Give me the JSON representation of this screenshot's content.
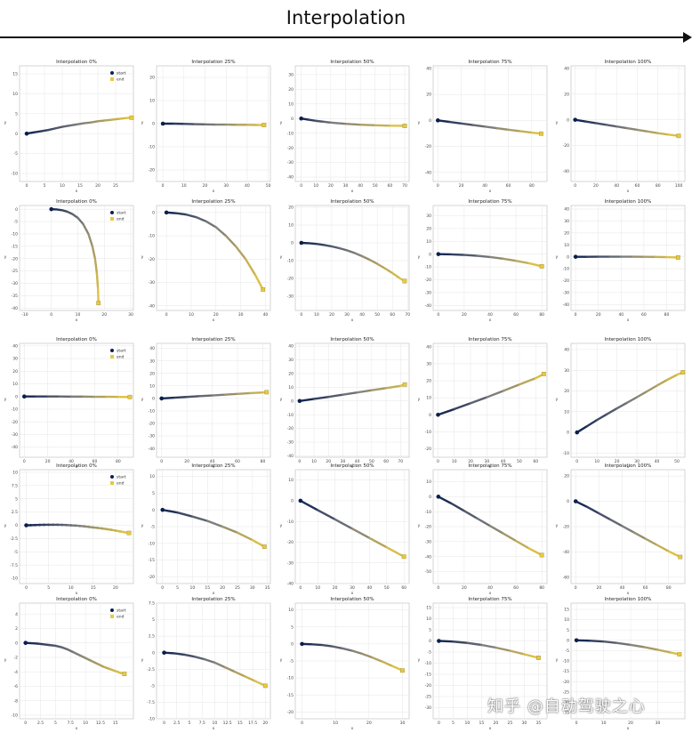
{
  "header": {
    "title": "Interpolation"
  },
  "watermark": "知乎 @自动驾驶之心",
  "colors": {
    "start": "#0b1f4d",
    "end": "#e8c93e",
    "mid": "#7d7d7d",
    "grid": "#e6e6e6",
    "frame": "#bbbbbb"
  },
  "chart_data": [
    {
      "type": "line",
      "title": "Interpolation 0%",
      "xlabel": "x",
      "ylabel": "y",
      "xlim": [
        -2,
        30
      ],
      "ylim": [
        -12,
        17
      ],
      "xticks": [
        0,
        5,
        10,
        15,
        20,
        25
      ],
      "yticks": [
        15,
        10,
        5,
        0,
        -5,
        -10
      ],
      "legend": [
        "start",
        "end"
      ],
      "x": [
        0,
        2,
        4,
        6,
        8,
        10,
        12,
        14,
        16,
        18,
        20,
        22,
        24,
        26,
        28,
        29.5
      ],
      "y": [
        0,
        0.3,
        0.6,
        0.9,
        1.3,
        1.7,
        2.0,
        2.3,
        2.6,
        2.8,
        3.1,
        3.3,
        3.5,
        3.7,
        3.9,
        4.0
      ]
    },
    {
      "type": "line",
      "title": "Interpolation 25%",
      "xlabel": "x",
      "ylabel": "y",
      "xlim": [
        -3,
        51
      ],
      "ylim": [
        -25,
        25
      ],
      "xticks": [
        0,
        10,
        20,
        30,
        40,
        50
      ],
      "yticks": [
        20,
        10,
        0,
        -10,
        -20
      ],
      "legend": [],
      "x": [
        0,
        5,
        10,
        15,
        20,
        25,
        30,
        35,
        40,
        45,
        48
      ],
      "y": [
        0,
        0,
        -0.1,
        -0.2,
        -0.3,
        -0.4,
        -0.4,
        -0.5,
        -0.5,
        -0.6,
        -0.6
      ]
    },
    {
      "type": "line",
      "title": "Interpolation 50%",
      "xlabel": "x",
      "ylabel": "y",
      "xlim": [
        -4,
        73
      ],
      "ylim": [
        -43,
        36
      ],
      "xticks": [
        0,
        10,
        20,
        30,
        40,
        50,
        60,
        70
      ],
      "yticks": [
        30,
        20,
        10,
        0,
        -10,
        -20,
        -30,
        -40
      ],
      "legend": [],
      "x": [
        0,
        5,
        10,
        15,
        20,
        30,
        40,
        50,
        60,
        70
      ],
      "y": [
        0,
        -0.8,
        -1.6,
        -2.2,
        -2.8,
        -3.6,
        -4.2,
        -4.6,
        -4.9,
        -5.0
      ]
    },
    {
      "type": "line",
      "title": "Interpolation 75%",
      "xlabel": "x",
      "ylabel": "y",
      "xlim": [
        -4,
        93
      ],
      "ylim": [
        -47,
        42
      ],
      "xticks": [
        0,
        20,
        40,
        60,
        80
      ],
      "yticks": [
        40,
        20,
        0,
        -20,
        -40
      ],
      "legend": [],
      "x": [
        0,
        10,
        20,
        30,
        40,
        50,
        60,
        70,
        80,
        88
      ],
      "y": [
        0,
        -1.2,
        -2.4,
        -3.6,
        -4.8,
        -6.0,
        -7.2,
        -8.3,
        -9.4,
        -10.2
      ]
    },
    {
      "type": "line",
      "title": "Interpolation 100%",
      "xlabel": "x",
      "ylabel": "y",
      "xlim": [
        -4,
        106
      ],
      "ylim": [
        -48,
        42
      ],
      "xticks": [
        0,
        20,
        40,
        60,
        80,
        100
      ],
      "yticks": [
        40,
        20,
        0,
        -20,
        -40
      ],
      "legend": [],
      "x": [
        0,
        10,
        20,
        30,
        40,
        50,
        60,
        70,
        80,
        90,
        100
      ],
      "y": [
        0,
        -1.3,
        -2.6,
        -3.9,
        -5.2,
        -6.5,
        -7.8,
        -9.1,
        -10.4,
        -11.5,
        -12.5
      ]
    },
    {
      "type": "line",
      "title": "Interpolation 0%",
      "xlabel": "x",
      "ylabel": "y",
      "xlim": [
        -12,
        31
      ],
      "ylim": [
        -41,
        1.5
      ],
      "xticks": [
        -10,
        0,
        10,
        20,
        30
      ],
      "yticks": [
        0,
        -5,
        -10,
        -15,
        -20,
        -25,
        -30,
        -35,
        -40
      ],
      "legend": [
        "start",
        "end"
      ],
      "x": [
        0,
        2,
        4,
        6,
        8,
        10,
        12,
        14,
        15.5,
        16.5,
        17.2,
        17.6,
        17.8
      ],
      "y": [
        0,
        -0.1,
        -0.4,
        -1,
        -2,
        -3.5,
        -6,
        -10,
        -15,
        -20,
        -26,
        -32,
        -38
      ]
    },
    {
      "type": "line",
      "title": "Interpolation 25%",
      "xlabel": "x",
      "ylabel": "y",
      "xlim": [
        -4,
        42
      ],
      "ylim": [
        -42,
        3
      ],
      "xticks": [
        0,
        10,
        20,
        30,
        40
      ],
      "yticks": [
        0,
        -10,
        -20,
        -30,
        -40
      ],
      "legend": [],
      "x": [
        0,
        4,
        8,
        12,
        16,
        20,
        24,
        28,
        32,
        36,
        39
      ],
      "y": [
        0,
        -0.3,
        -0.9,
        -2,
        -3.8,
        -6.3,
        -10,
        -14.5,
        -20,
        -27,
        -33
      ]
    },
    {
      "type": "line",
      "title": "Interpolation 50%",
      "xlabel": "x",
      "ylabel": "y",
      "xlim": [
        -4,
        71
      ],
      "ylim": [
        -38,
        21
      ],
      "xticks": [
        0,
        10,
        20,
        30,
        40,
        50,
        60,
        70
      ],
      "yticks": [
        20,
        10,
        0,
        -10,
        -20,
        -30
      ],
      "legend": [],
      "x": [
        0,
        5,
        10,
        15,
        20,
        25,
        30,
        35,
        40,
        45,
        50,
        55,
        60,
        65,
        68
      ],
      "y": [
        0,
        -0.2,
        -0.6,
        -1.2,
        -2,
        -3,
        -4.2,
        -5.7,
        -7.5,
        -9.5,
        -11.8,
        -14.3,
        -17,
        -20,
        -21.5
      ]
    },
    {
      "type": "line",
      "title": "Interpolation 75%",
      "xlabel": "x",
      "ylabel": "y",
      "xlim": [
        -4,
        84
      ],
      "ylim": [
        -44,
        38
      ],
      "xticks": [
        0,
        20,
        40,
        60,
        80
      ],
      "yticks": [
        30,
        20,
        10,
        0,
        -10,
        -20,
        -30,
        -40
      ],
      "legend": [],
      "x": [
        0,
        10,
        20,
        30,
        40,
        50,
        60,
        70,
        80
      ],
      "y": [
        0,
        -0.2,
        -0.6,
        -1.3,
        -2.3,
        -3.6,
        -5.2,
        -7.1,
        -9.5
      ]
    },
    {
      "type": "line",
      "title": "Interpolation 100%",
      "xlabel": "x",
      "ylabel": "y",
      "xlim": [
        -4,
        96
      ],
      "ylim": [
        -45,
        43
      ],
      "xticks": [
        0,
        20,
        40,
        60,
        80
      ],
      "yticks": [
        40,
        30,
        20,
        10,
        0,
        -10,
        -20,
        -30,
        -40
      ],
      "legend": [],
      "x": [
        0,
        10,
        20,
        30,
        40,
        50,
        60,
        70,
        80,
        90
      ],
      "y": [
        0,
        0,
        0.1,
        0.1,
        0.1,
        0.1,
        0,
        -0.1,
        -0.3,
        -0.6
      ]
    },
    {
      "type": "line",
      "title": "Interpolation 0%",
      "xlabel": "x",
      "ylabel": "y",
      "xlim": [
        -4,
        93
      ],
      "ylim": [
        -48,
        42
      ],
      "xticks": [
        0,
        20,
        40,
        60,
        80
      ],
      "yticks": [
        40,
        30,
        20,
        10,
        0,
        -10,
        -20,
        -30,
        -40
      ],
      "legend": [
        "start",
        "end"
      ],
      "x": [
        0,
        10,
        20,
        30,
        40,
        50,
        60,
        70,
        80,
        90
      ],
      "y": [
        0,
        0,
        0,
        0,
        -0.1,
        -0.1,
        -0.2,
        -0.2,
        -0.3,
        -0.4
      ]
    },
    {
      "type": "line",
      "title": "Interpolation 25%",
      "xlabel": "x",
      "ylabel": "y",
      "xlim": [
        -4,
        86
      ],
      "ylim": [
        -47,
        44
      ],
      "xticks": [
        0,
        20,
        40,
        60,
        80
      ],
      "yticks": [
        40,
        30,
        20,
        10,
        0,
        -10,
        -20,
        -30,
        -40
      ],
      "legend": [],
      "x": [
        0,
        10,
        20,
        30,
        40,
        50,
        60,
        70,
        80,
        83
      ],
      "y": [
        0,
        0.6,
        1.2,
        1.8,
        2.4,
        3,
        3.6,
        4.2,
        4.8,
        5
      ]
    },
    {
      "type": "line",
      "title": "Interpolation 50%",
      "xlabel": "x",
      "ylabel": "y",
      "xlim": [
        -3,
        76
      ],
      "ylim": [
        -41,
        42
      ],
      "xticks": [
        0,
        10,
        20,
        30,
        40,
        50,
        60,
        70
      ],
      "yticks": [
        40,
        30,
        20,
        10,
        0,
        -10,
        -20,
        -30,
        -40
      ],
      "legend": [],
      "x": [
        0,
        10,
        20,
        30,
        40,
        50,
        60,
        70,
        73
      ],
      "y": [
        0,
        1.5,
        3,
        4.6,
        6.2,
        7.8,
        9.4,
        11,
        12
      ]
    },
    {
      "type": "line",
      "title": "Interpolation 75%",
      "xlabel": "x",
      "ylabel": "y",
      "xlim": [
        -3,
        67
      ],
      "ylim": [
        -25,
        42
      ],
      "xticks": [
        0,
        10,
        20,
        30,
        40,
        50,
        60
      ],
      "yticks": [
        40,
        30,
        20,
        10,
        0,
        -10,
        -20
      ],
      "legend": [],
      "x": [
        0,
        10,
        20,
        30,
        40,
        50,
        60,
        65
      ],
      "y": [
        0,
        3.3,
        6.8,
        10.3,
        14,
        17.8,
        21.5,
        24
      ]
    },
    {
      "type": "line",
      "title": "Interpolation 100%",
      "xlabel": "x",
      "ylabel": "y",
      "xlim": [
        -3,
        54
      ],
      "ylim": [
        -12,
        43
      ],
      "xticks": [
        0,
        10,
        20,
        30,
        40,
        50
      ],
      "yticks": [
        40,
        30,
        20,
        10,
        0,
        -10
      ],
      "legend": [],
      "x": [
        0,
        5,
        10,
        15,
        20,
        25,
        30,
        35,
        40,
        45,
        50,
        53
      ],
      "y": [
        0,
        3,
        6,
        8.8,
        11.6,
        14.3,
        17,
        19.8,
        22.6,
        25.3,
        27.8,
        29
      ]
    },
    {
      "type": "line",
      "title": "Interpolation 0%",
      "xlabel": "x",
      "ylabel": "y",
      "xlim": [
        -1.5,
        24
      ],
      "ylim": [
        -11,
        10.5
      ],
      "xticks": [
        0,
        5,
        10,
        15,
        20
      ],
      "yticks": [
        10.0,
        7.5,
        5.0,
        2.5,
        0.0,
        -2.5,
        -5.0,
        -7.5,
        -10.0
      ],
      "legend": [
        "start",
        "end"
      ],
      "x": [
        0,
        1,
        2,
        3,
        4,
        5,
        6,
        7,
        8,
        9,
        10,
        11,
        12,
        13,
        14,
        15,
        16,
        17,
        18,
        19,
        20,
        21,
        22,
        23
      ],
      "y": [
        0,
        0.02,
        0.05,
        0.07,
        0.09,
        0.1,
        0.1,
        0.1,
        0.08,
        0.05,
        0,
        -0.05,
        -0.12,
        -0.2,
        -0.3,
        -0.4,
        -0.5,
        -0.6,
        -0.72,
        -0.85,
        -1.0,
        -1.15,
        -1.3,
        -1.45
      ]
    },
    {
      "type": "line",
      "title": "Interpolation 25%",
      "xlabel": "x",
      "ylabel": "y",
      "xlim": [
        -2,
        36
      ],
      "ylim": [
        -22,
        12
      ],
      "xticks": [
        0,
        5,
        10,
        15,
        20,
        25,
        30,
        35
      ],
      "yticks": [
        10,
        5,
        0,
        -5,
        -10,
        -15,
        -20
      ],
      "legend": [],
      "x": [
        0,
        5,
        10,
        15,
        20,
        25,
        30,
        34
      ],
      "y": [
        0,
        -0.8,
        -2,
        -3.3,
        -5,
        -6.8,
        -9,
        -11
      ]
    },
    {
      "type": "line",
      "title": "Interpolation 50%",
      "xlabel": "x",
      "ylabel": "y",
      "xlim": [
        -3,
        63
      ],
      "ylim": [
        -40,
        15
      ],
      "xticks": [
        0,
        10,
        20,
        30,
        40,
        50,
        60
      ],
      "yticks": [
        10,
        0,
        -10,
        -20,
        -30,
        -40
      ],
      "legend": [],
      "x": [
        0,
        10,
        20,
        30,
        40,
        50,
        60
      ],
      "y": [
        0,
        -4.5,
        -9,
        -13.5,
        -18,
        -22.5,
        -27
      ]
    },
    {
      "type": "line",
      "title": "Interpolation 75%",
      "xlabel": "x",
      "ylabel": "y",
      "xlim": [
        -4,
        84
      ],
      "ylim": [
        -58,
        18
      ],
      "xticks": [
        0,
        20,
        40,
        60,
        80
      ],
      "yticks": [
        10,
        0,
        -10,
        -20,
        -30,
        -40,
        -50
      ],
      "legend": [],
      "x": [
        0,
        10,
        20,
        30,
        40,
        50,
        60,
        70,
        80
      ],
      "y": [
        0,
        -4.5,
        -9.5,
        -14.5,
        -19.5,
        -24.5,
        -29.5,
        -34.5,
        -39
      ]
    },
    {
      "type": "line",
      "title": "Interpolation 100%",
      "xlabel": "x",
      "ylabel": "y",
      "xlim": [
        -4,
        94
      ],
      "ylim": [
        -65,
        25
      ],
      "xticks": [
        0,
        20,
        40,
        60,
        80
      ],
      "yticks": [
        20,
        0,
        -20,
        -40,
        -60
      ],
      "legend": [],
      "x": [
        0,
        10,
        20,
        30,
        40,
        50,
        60,
        70,
        80,
        90
      ],
      "y": [
        0,
        -4.5,
        -9.5,
        -14.5,
        -19.5,
        -24.5,
        -29.5,
        -34.5,
        -39.5,
        -44
      ]
    },
    {
      "type": "line",
      "title": "Interpolation 0%",
      "xlabel": "x",
      "ylabel": "y",
      "xlim": [
        -1,
        18
      ],
      "ylim": [
        -10.5,
        5.5
      ],
      "xticks": [
        0.0,
        2.5,
        5.0,
        7.5,
        10.0,
        12.5,
        15.0
      ],
      "yticks": [
        4,
        2,
        0,
        -2,
        -4,
        -6,
        -8,
        -10
      ],
      "legend": [
        "start",
        "end"
      ],
      "x": [
        0,
        1,
        2,
        3,
        4,
        5,
        6,
        7,
        8,
        9,
        10,
        11,
        12,
        13,
        14,
        15,
        16,
        16.5
      ],
      "y": [
        0,
        -0.05,
        -0.1,
        -0.2,
        -0.3,
        -0.4,
        -0.6,
        -0.9,
        -1.3,
        -1.7,
        -2.1,
        -2.5,
        -2.9,
        -3.3,
        -3.6,
        -3.9,
        -4.2,
        -4.3
      ]
    },
    {
      "type": "line",
      "title": "Interpolation 25%",
      "xlabel": "x",
      "ylabel": "y",
      "xlim": [
        -1.5,
        21
      ],
      "ylim": [
        -10,
        7.5
      ],
      "xticks": [
        0.0,
        2.5,
        5.0,
        7.5,
        10.0,
        12.5,
        15.0,
        17.5,
        20.0
      ],
      "yticks": [
        7.5,
        5.0,
        2.5,
        0.0,
        -2.5,
        -5.0,
        -7.5,
        -10.0
      ],
      "legend": [],
      "x": [
        0,
        2,
        4,
        6,
        8,
        10,
        12,
        14,
        16,
        18,
        20
      ],
      "y": [
        0,
        -0.1,
        -0.3,
        -0.6,
        -1.0,
        -1.5,
        -2.2,
        -2.9,
        -3.6,
        -4.3,
        -5.0
      ]
    },
    {
      "type": "line",
      "title": "Interpolation 50%",
      "xlabel": "x",
      "ylabel": "y",
      "xlim": [
        -2,
        32
      ],
      "ylim": [
        -22,
        12
      ],
      "xticks": [
        0,
        10,
        20,
        30
      ],
      "yticks": [
        10,
        5,
        0,
        -5,
        -10,
        -15,
        -20
      ],
      "legend": [],
      "x": [
        0,
        3,
        6,
        9,
        12,
        15,
        18,
        21,
        24,
        27,
        30
      ],
      "y": [
        0,
        -0.1,
        -0.3,
        -0.7,
        -1.3,
        -2,
        -2.9,
        -4,
        -5.2,
        -6.5,
        -7.8
      ]
    },
    {
      "type": "line",
      "title": "Interpolation 75%",
      "xlabel": "x",
      "ylabel": "y",
      "xlim": [
        -2,
        38
      ],
      "ylim": [
        -35,
        17
      ],
      "xticks": [
        0,
        5,
        10,
        15,
        20,
        25,
        30,
        35
      ],
      "yticks": [
        15,
        10,
        5,
        0,
        -5,
        -10,
        -15,
        -20,
        -25,
        -30
      ],
      "legend": [],
      "x": [
        0,
        5,
        10,
        15,
        20,
        25,
        30,
        35
      ],
      "y": [
        0,
        -0.3,
        -0.9,
        -1.8,
        -3.0,
        -4.4,
        -6.0,
        -7.6
      ]
    },
    {
      "type": "line",
      "title": "Interpolation 100%",
      "xlabel": "x",
      "ylabel": "y",
      "xlim": [
        -2,
        40
      ],
      "ylim": [
        -38,
        18
      ],
      "xticks": [
        0,
        10,
        20,
        30
      ],
      "yticks": [
        15,
        10,
        5,
        0,
        -5,
        -10,
        -15,
        -20,
        -25,
        -30,
        -35
      ],
      "legend": [],
      "x": [
        0,
        5,
        10,
        15,
        20,
        25,
        30,
        35,
        38
      ],
      "y": [
        0,
        -0.2,
        -0.6,
        -1.3,
        -2.2,
        -3.3,
        -4.6,
        -6.0,
        -6.8
      ]
    }
  ]
}
